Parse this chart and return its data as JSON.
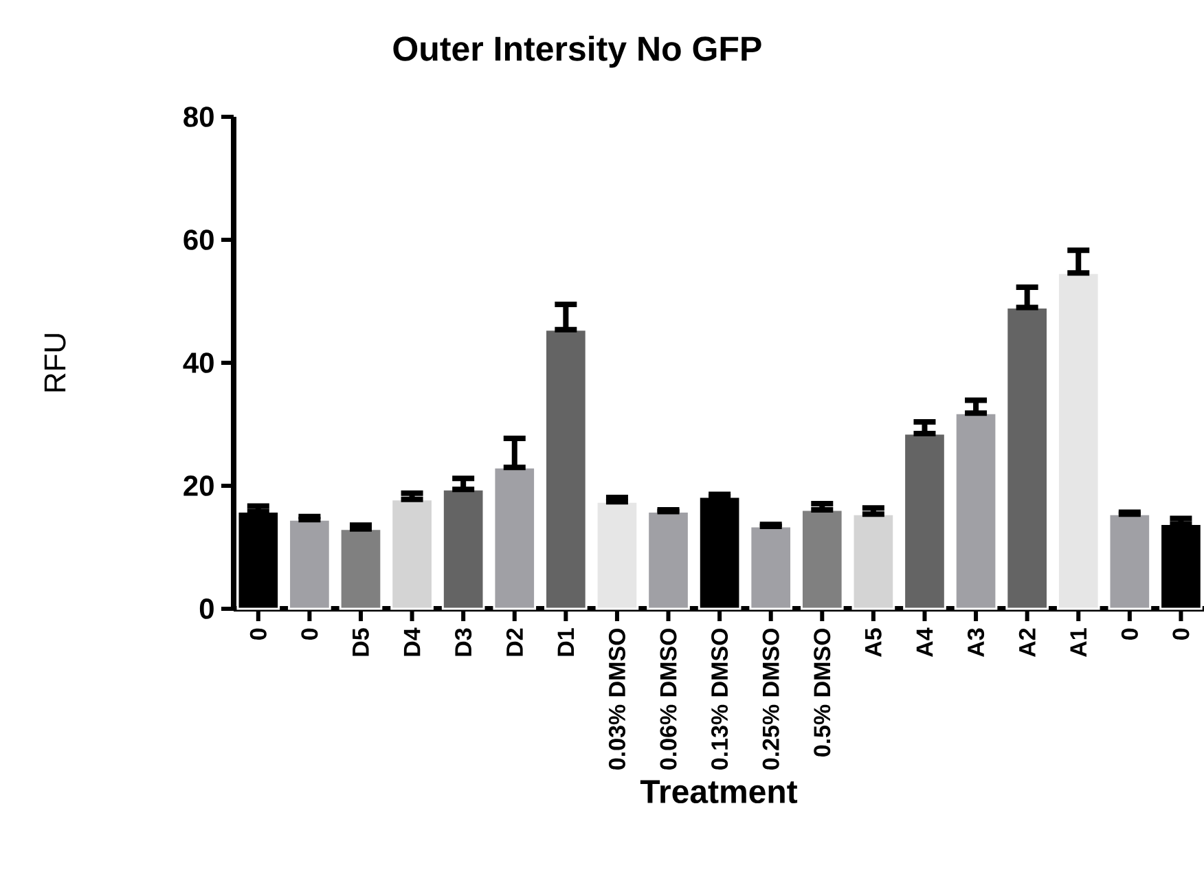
{
  "chart_data": {
    "type": "bar",
    "title": "Outer Intersity No GFP",
    "xlabel": "Treatment",
    "ylabel": "RFU",
    "categories": [
      "0",
      "0",
      "D5",
      "D4",
      "D3",
      "D2",
      "D1",
      "0.03% DMSO",
      "0.06% DMSO",
      "0.13% DMSO",
      "0.25% DMSO",
      "0.5% DMSO",
      "A5",
      "A4",
      "A3",
      "A2",
      "A1",
      "0",
      "0"
    ],
    "values": [
      15.8,
      14.5,
      13.0,
      17.8,
      19.4,
      23.0,
      45.4,
      17.4,
      15.8,
      18.2,
      13.4,
      16.1,
      15.4,
      28.5,
      31.8,
      49.0,
      54.6,
      15.4,
      13.8
    ],
    "errors": [
      [
        15.8,
        16.7
      ],
      [
        14.5,
        15.0
      ],
      [
        13.0,
        13.6
      ],
      [
        17.8,
        18.8
      ],
      [
        19.4,
        21.2
      ],
      [
        23.0,
        27.7
      ],
      [
        45.4,
        49.5
      ],
      [
        17.4,
        18.1
      ],
      [
        15.8,
        16.1
      ],
      [
        18.2,
        18.6
      ],
      [
        13.4,
        13.7
      ],
      [
        16.1,
        17.1
      ],
      [
        15.4,
        16.4
      ],
      [
        28.5,
        30.4
      ],
      [
        31.8,
        33.9
      ],
      [
        49.0,
        52.3
      ],
      [
        54.6,
        58.3
      ],
      [
        15.4,
        15.7
      ],
      [
        13.8,
        14.7
      ]
    ],
    "colors": [
      "#000000",
      "#a0a0a5",
      "#808080",
      "#d4d4d4",
      "#646464",
      "#a0a0a5",
      "#646464",
      "#e6e6e6",
      "#a0a0a5",
      "#000000",
      "#a0a0a5",
      "#808080",
      "#d4d4d4",
      "#646464",
      "#a0a0a5",
      "#646464",
      "#e6e6e6",
      "#a0a0a5",
      "#000000"
    ],
    "ylim": [
      0,
      80
    ],
    "yticks": [
      0,
      20,
      40,
      60,
      80
    ]
  }
}
